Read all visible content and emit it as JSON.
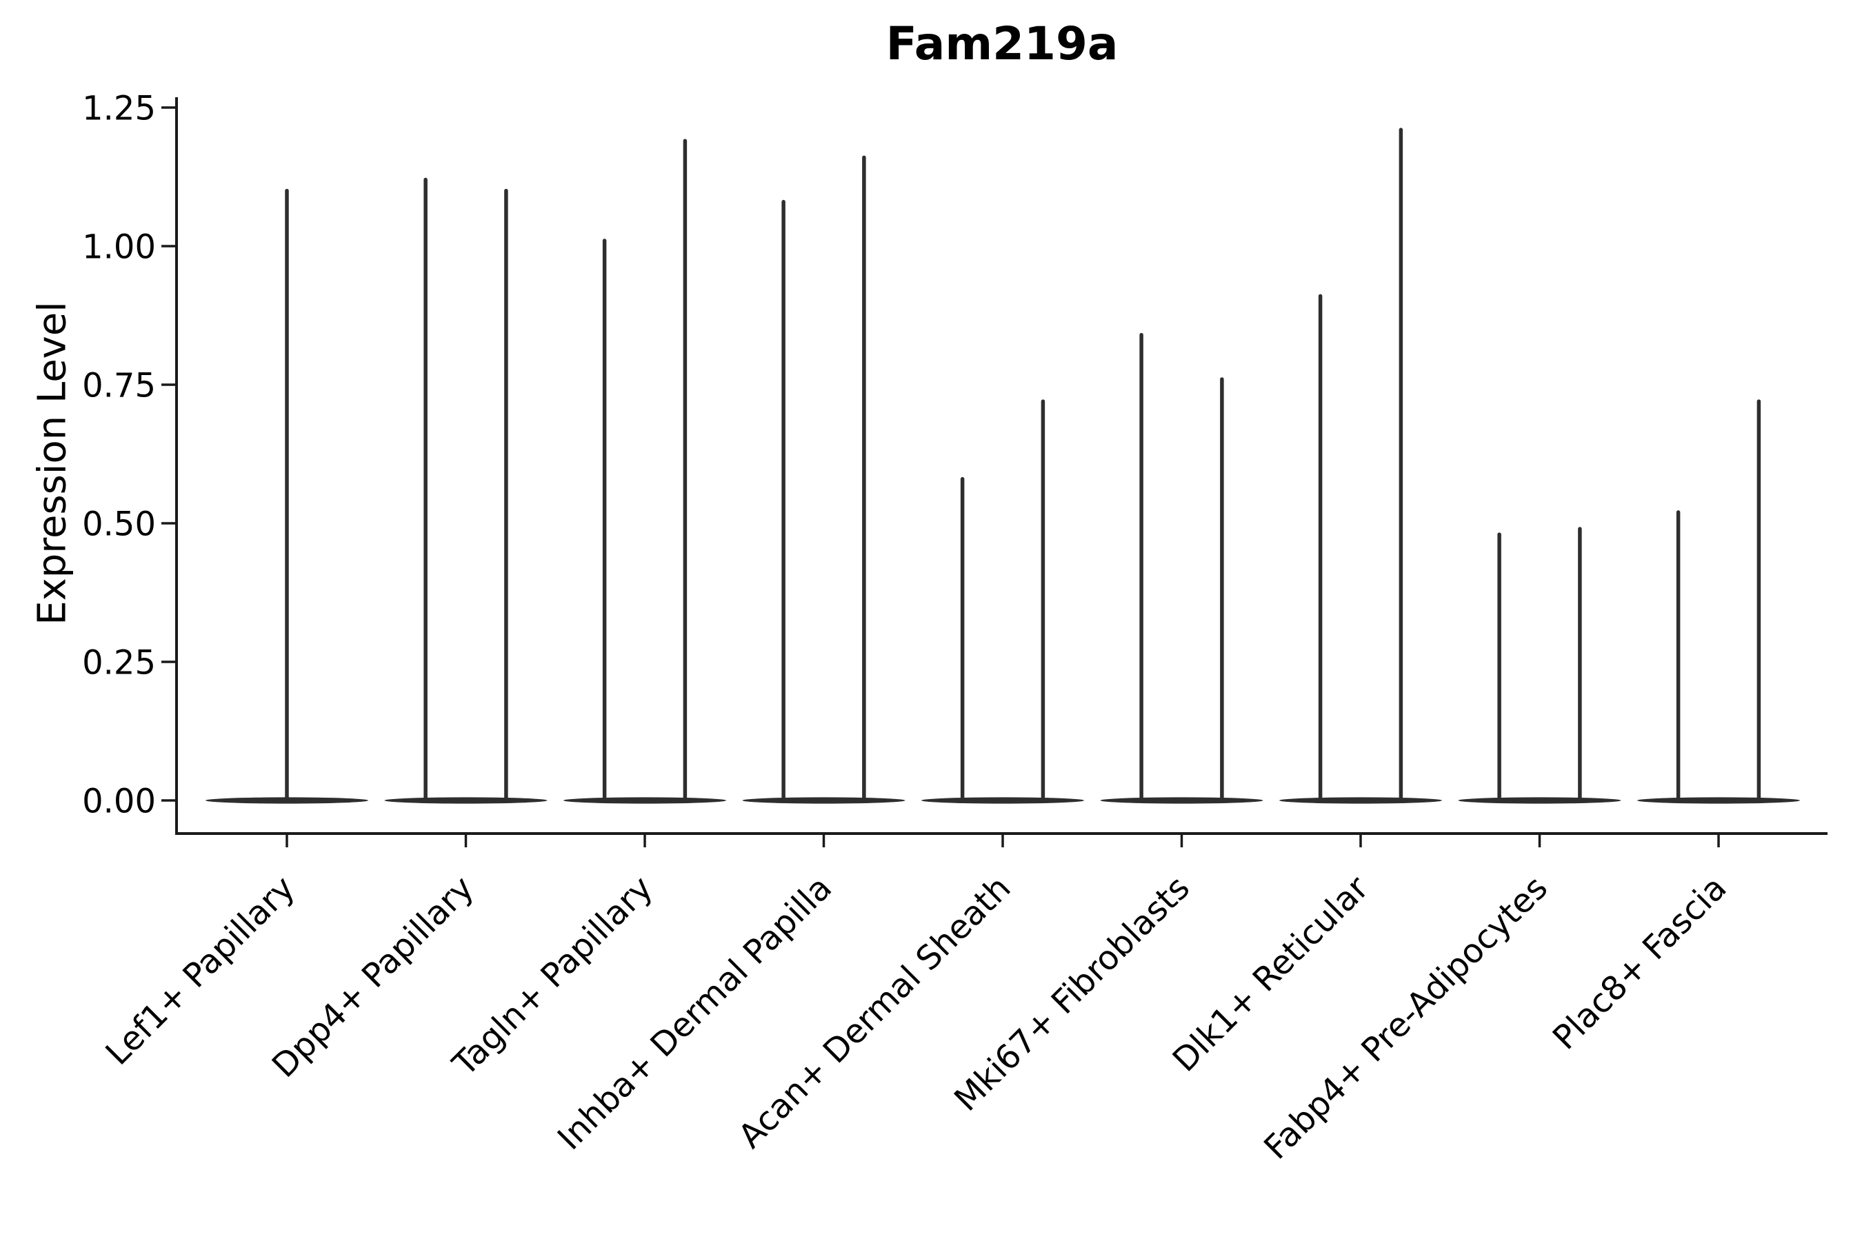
{
  "title": "Fam219a",
  "y_axis_label": "Expression Level",
  "chart_data": {
    "type": "violin",
    "title": "Fam219a",
    "xlabel": "",
    "ylabel": "Expression Level",
    "categories": [
      "Lef1+ Papillary",
      "Dpp4+ Papillary",
      "Tagln+ Papillary",
      "Inhba+ Dermal Papilla",
      "Acan+ Dermal Sheath",
      "Mki67+ Fibroblasts",
      "Dlk1+ Reticular",
      "Fabp4+ Pre-Adipocytes",
      "Plac8+ Fascia"
    ],
    "series_description": "Each category shows narrow-spike violins: density mass concentrated at expression 0 (flat wide base) with a thin tail rising to the maximum expression value. First category has one centered violin; all others have two side-by-side violins.",
    "violin_maxima_per_category": [
      [
        1.1
      ],
      [
        1.12,
        1.1
      ],
      [
        1.01,
        1.19
      ],
      [
        1.08,
        1.16
      ],
      [
        0.58,
        0.72
      ],
      [
        0.84,
        0.76
      ],
      [
        0.91,
        1.21
      ],
      [
        0.48,
        0.49
      ],
      [
        0.52,
        0.72
      ]
    ],
    "baseline_value": 0.0,
    "y_ticks": [
      0.0,
      0.25,
      0.5,
      0.75,
      1.0,
      1.25
    ],
    "y_tick_labels": [
      "0.00",
      "0.25",
      "0.50",
      "0.75",
      "1.00",
      "1.25"
    ],
    "ylim": [
      -0.06,
      1.27
    ],
    "style": {
      "violin_color": "#2e2e2e",
      "axis_color": "#1a1a1a",
      "text_color": "#000000",
      "grid": false,
      "legend": false,
      "x_tick_rotation": 45,
      "spines": [
        "left",
        "bottom"
      ]
    }
  }
}
